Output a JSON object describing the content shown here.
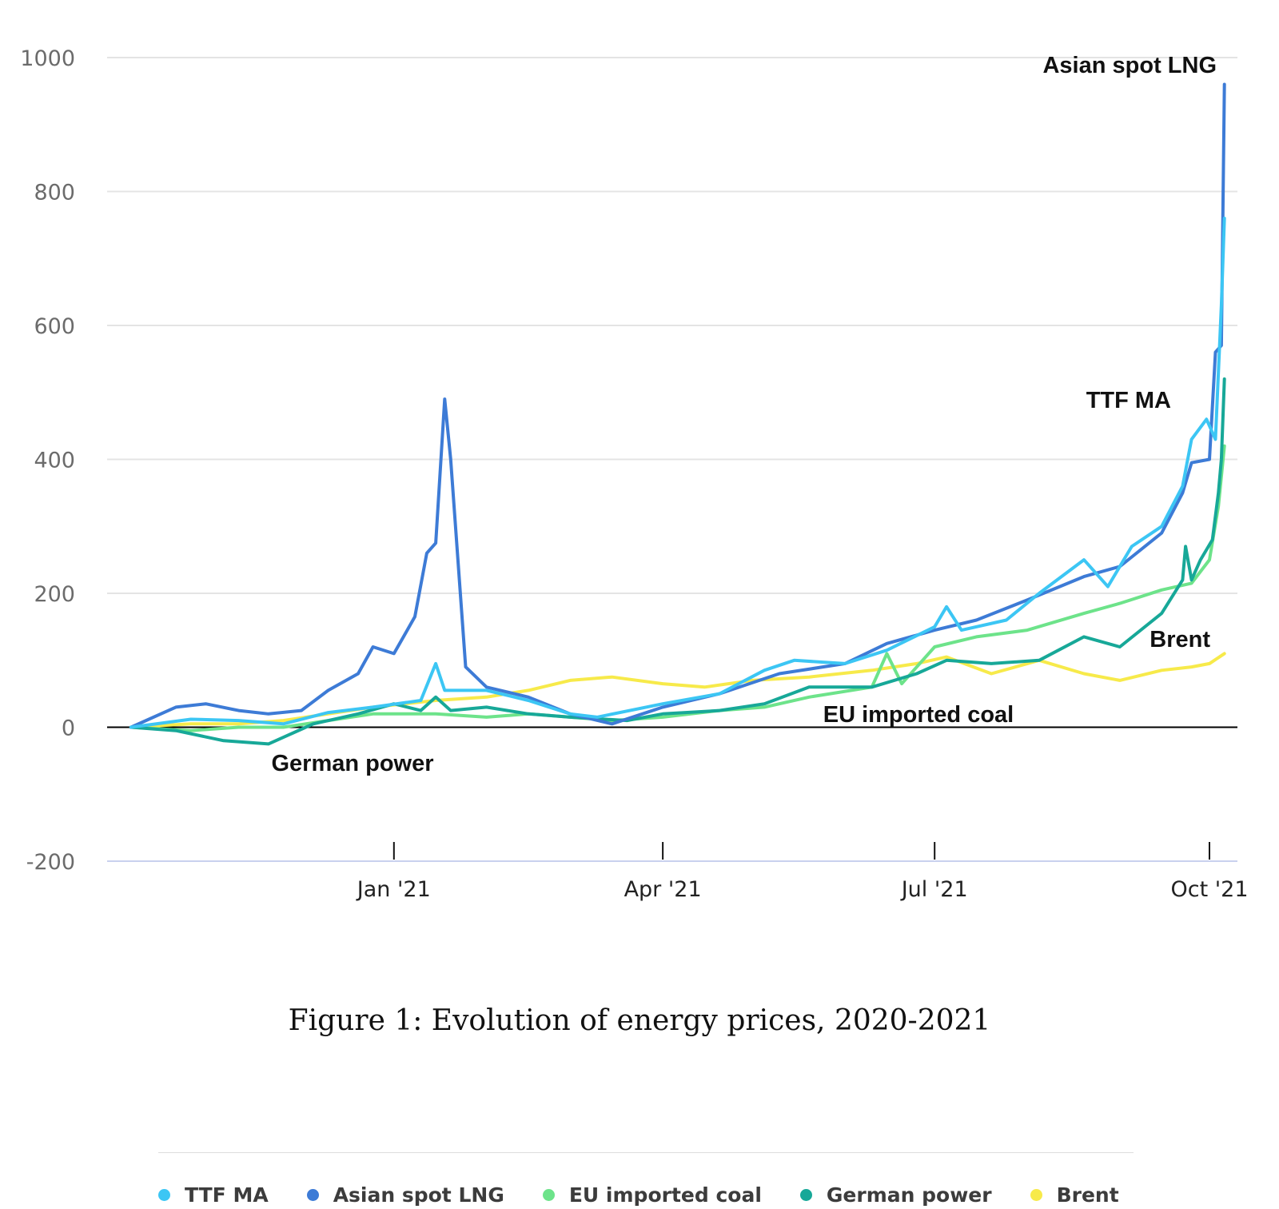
{
  "chart_data": {
    "type": "line",
    "ylim": [
      -200,
      1000
    ],
    "y_ticks": [
      1000,
      800,
      600,
      400,
      200,
      0,
      -200
    ],
    "x_ticks": [
      "Jan '21",
      "Apr '21",
      "Jul '21",
      "Oct '21"
    ],
    "x_tick_dates": [
      "2021-01-01",
      "2021-04-01",
      "2021-07-01",
      "2021-10-01"
    ],
    "x_range": [
      "2020-10-05",
      "2021-10-06"
    ],
    "grid": true,
    "legend_position": "bottom",
    "annotations": [
      {
        "text": "Asian spot LNG",
        "series": "Asian spot LNG"
      },
      {
        "text": "TTF MA",
        "series": "TTF MA"
      },
      {
        "text": "Brent",
        "series": "Brent"
      },
      {
        "text": "EU imported coal",
        "series": "EU imported coal"
      },
      {
        "text": "German power",
        "series": "German power"
      }
    ],
    "series": [
      {
        "name": "TTF MA",
        "color": "#3cc6f4",
        "points": [
          [
            "2020-10-05",
            0
          ],
          [
            "2020-10-25",
            12
          ],
          [
            "2020-11-10",
            10
          ],
          [
            "2020-11-25",
            5
          ],
          [
            "2020-12-10",
            22
          ],
          [
            "2020-12-25",
            30
          ],
          [
            "2021-01-10",
            40
          ],
          [
            "2021-01-15",
            95
          ],
          [
            "2021-01-18",
            55
          ],
          [
            "2021-02-01",
            55
          ],
          [
            "2021-02-15",
            40
          ],
          [
            "2021-03-01",
            20
          ],
          [
            "2021-03-10",
            15
          ],
          [
            "2021-04-01",
            35
          ],
          [
            "2021-04-20",
            50
          ],
          [
            "2021-05-05",
            85
          ],
          [
            "2021-05-15",
            100
          ],
          [
            "2021-06-01",
            95
          ],
          [
            "2021-06-15",
            115
          ],
          [
            "2021-07-01",
            150
          ],
          [
            "2021-07-05",
            180
          ],
          [
            "2021-07-10",
            145
          ],
          [
            "2021-07-25",
            160
          ],
          [
            "2021-08-05",
            200
          ],
          [
            "2021-08-20",
            250
          ],
          [
            "2021-08-28",
            210
          ],
          [
            "2021-09-05",
            270
          ],
          [
            "2021-09-15",
            300
          ],
          [
            "2021-09-22",
            360
          ],
          [
            "2021-09-25",
            430
          ],
          [
            "2021-09-30",
            460
          ],
          [
            "2021-10-03",
            430
          ],
          [
            "2021-10-05",
            630
          ],
          [
            "2021-10-06",
            760
          ]
        ]
      },
      {
        "name": "Asian spot LNG",
        "color": "#3d7bd6",
        "points": [
          [
            "2020-10-05",
            0
          ],
          [
            "2020-10-20",
            30
          ],
          [
            "2020-10-30",
            35
          ],
          [
            "2020-11-10",
            25
          ],
          [
            "2020-11-20",
            20
          ],
          [
            "2020-12-01",
            25
          ],
          [
            "2020-12-10",
            55
          ],
          [
            "2020-12-20",
            80
          ],
          [
            "2020-12-25",
            120
          ],
          [
            "2021-01-01",
            110
          ],
          [
            "2021-01-08",
            165
          ],
          [
            "2021-01-12",
            260
          ],
          [
            "2021-01-15",
            275
          ],
          [
            "2021-01-18",
            490
          ],
          [
            "2021-01-20",
            400
          ],
          [
            "2021-01-25",
            90
          ],
          [
            "2021-02-01",
            60
          ],
          [
            "2021-02-15",
            45
          ],
          [
            "2021-03-01",
            20
          ],
          [
            "2021-03-15",
            5
          ],
          [
            "2021-04-01",
            30
          ],
          [
            "2021-04-20",
            50
          ],
          [
            "2021-05-10",
            80
          ],
          [
            "2021-06-01",
            95
          ],
          [
            "2021-06-15",
            125
          ],
          [
            "2021-07-01",
            145
          ],
          [
            "2021-07-15",
            160
          ],
          [
            "2021-08-01",
            190
          ],
          [
            "2021-08-20",
            225
          ],
          [
            "2021-09-01",
            240
          ],
          [
            "2021-09-15",
            290
          ],
          [
            "2021-09-22",
            350
          ],
          [
            "2021-09-25",
            395
          ],
          [
            "2021-10-01",
            400
          ],
          [
            "2021-10-03",
            560
          ],
          [
            "2021-10-05",
            570
          ],
          [
            "2021-10-06",
            960
          ]
        ]
      },
      {
        "name": "EU imported coal",
        "color": "#6de38a",
        "points": [
          [
            "2020-10-05",
            0
          ],
          [
            "2020-10-25",
            -5
          ],
          [
            "2020-11-10",
            0
          ],
          [
            "2020-11-25",
            0
          ],
          [
            "2020-12-10",
            10
          ],
          [
            "2020-12-25",
            20
          ],
          [
            "2021-01-15",
            20
          ],
          [
            "2021-02-01",
            15
          ],
          [
            "2021-02-15",
            20
          ],
          [
            "2021-03-01",
            15
          ],
          [
            "2021-03-15",
            10
          ],
          [
            "2021-04-01",
            15
          ],
          [
            "2021-04-20",
            25
          ],
          [
            "2021-05-05",
            30
          ],
          [
            "2021-05-20",
            45
          ],
          [
            "2021-06-10",
            60
          ],
          [
            "2021-06-15",
            110
          ],
          [
            "2021-06-20",
            65
          ],
          [
            "2021-07-01",
            120
          ],
          [
            "2021-07-15",
            135
          ],
          [
            "2021-08-01",
            145
          ],
          [
            "2021-08-20",
            170
          ],
          [
            "2021-09-01",
            185
          ],
          [
            "2021-09-15",
            205
          ],
          [
            "2021-09-25",
            215
          ],
          [
            "2021-10-01",
            250
          ],
          [
            "2021-10-04",
            330
          ],
          [
            "2021-10-06",
            420
          ]
        ]
      },
      {
        "name": "German power",
        "color": "#17a898",
        "points": [
          [
            "2020-10-05",
            0
          ],
          [
            "2020-10-20",
            -5
          ],
          [
            "2020-11-05",
            -20
          ],
          [
            "2020-11-20",
            -25
          ],
          [
            "2020-11-25",
            -15
          ],
          [
            "2020-12-05",
            5
          ],
          [
            "2020-12-20",
            20
          ],
          [
            "2021-01-01",
            35
          ],
          [
            "2021-01-10",
            25
          ],
          [
            "2021-01-15",
            45
          ],
          [
            "2021-01-20",
            25
          ],
          [
            "2021-02-01",
            30
          ],
          [
            "2021-02-15",
            20
          ],
          [
            "2021-03-01",
            15
          ],
          [
            "2021-03-20",
            10
          ],
          [
            "2021-04-01",
            20
          ],
          [
            "2021-04-20",
            25
          ],
          [
            "2021-05-05",
            35
          ],
          [
            "2021-05-20",
            60
          ],
          [
            "2021-06-10",
            60
          ],
          [
            "2021-06-25",
            80
          ],
          [
            "2021-07-05",
            100
          ],
          [
            "2021-07-20",
            95
          ],
          [
            "2021-08-05",
            100
          ],
          [
            "2021-08-20",
            135
          ],
          [
            "2021-09-01",
            120
          ],
          [
            "2021-09-15",
            170
          ],
          [
            "2021-09-22",
            220
          ],
          [
            "2021-09-23",
            270
          ],
          [
            "2021-09-25",
            220
          ],
          [
            "2021-09-28",
            250
          ],
          [
            "2021-10-02",
            280
          ],
          [
            "2021-10-04",
            350
          ],
          [
            "2021-10-05",
            400
          ],
          [
            "2021-10-06",
            520
          ]
        ]
      },
      {
        "name": "Brent",
        "color": "#f7ea4a",
        "points": [
          [
            "2020-10-05",
            0
          ],
          [
            "2020-10-25",
            5
          ],
          [
            "2020-11-10",
            5
          ],
          [
            "2020-11-25",
            10
          ],
          [
            "2020-12-10",
            20
          ],
          [
            "2020-12-25",
            30
          ],
          [
            "2021-01-15",
            40
          ],
          [
            "2021-02-01",
            45
          ],
          [
            "2021-02-15",
            55
          ],
          [
            "2021-03-01",
            70
          ],
          [
            "2021-03-15",
            75
          ],
          [
            "2021-04-01",
            65
          ],
          [
            "2021-04-15",
            60
          ],
          [
            "2021-05-01",
            70
          ],
          [
            "2021-05-20",
            75
          ],
          [
            "2021-06-10",
            85
          ],
          [
            "2021-06-25",
            95
          ],
          [
            "2021-07-05",
            105
          ],
          [
            "2021-07-20",
            80
          ],
          [
            "2021-08-05",
            100
          ],
          [
            "2021-08-20",
            80
          ],
          [
            "2021-09-01",
            70
          ],
          [
            "2021-09-15",
            85
          ],
          [
            "2021-09-25",
            90
          ],
          [
            "2021-10-01",
            95
          ],
          [
            "2021-10-06",
            110
          ]
        ]
      }
    ]
  },
  "caption": "Figure 1: Evolution of energy prices, 2020-2021",
  "legend": [
    {
      "label": "TTF MA",
      "color": "#3cc6f4"
    },
    {
      "label": "Asian spot LNG",
      "color": "#3d7bd6"
    },
    {
      "label": "EU imported coal",
      "color": "#6de38a"
    },
    {
      "label": "German power",
      "color": "#17a898"
    },
    {
      "label": "Brent",
      "color": "#f7ea4a"
    }
  ]
}
